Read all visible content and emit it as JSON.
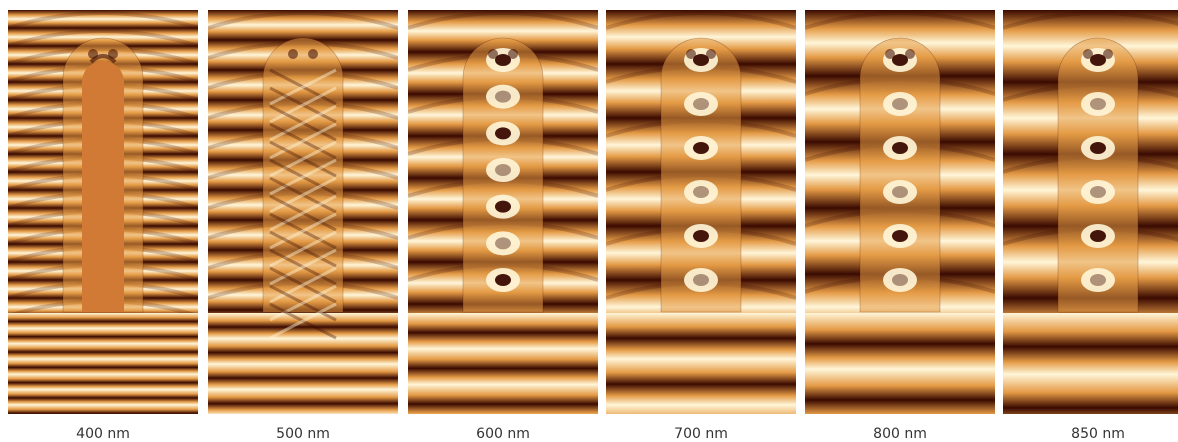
{
  "panels": [
    {
      "label": "400 nm",
      "wavelength_nm": 400
    },
    {
      "label": "500 nm",
      "wavelength_nm": 500
    },
    {
      "label": "600 nm",
      "wavelength_nm": 600
    },
    {
      "label": "700 nm",
      "wavelength_nm": 700
    },
    {
      "label": "800 nm",
      "wavelength_nm": 800
    },
    {
      "label": "850 nm",
      "wavelength_nm": 850
    }
  ],
  "colors": {
    "dark": "#3a0a00",
    "mid": "#e49a45",
    "light": "#fff6d9",
    "rod": "#d07a35"
  }
}
